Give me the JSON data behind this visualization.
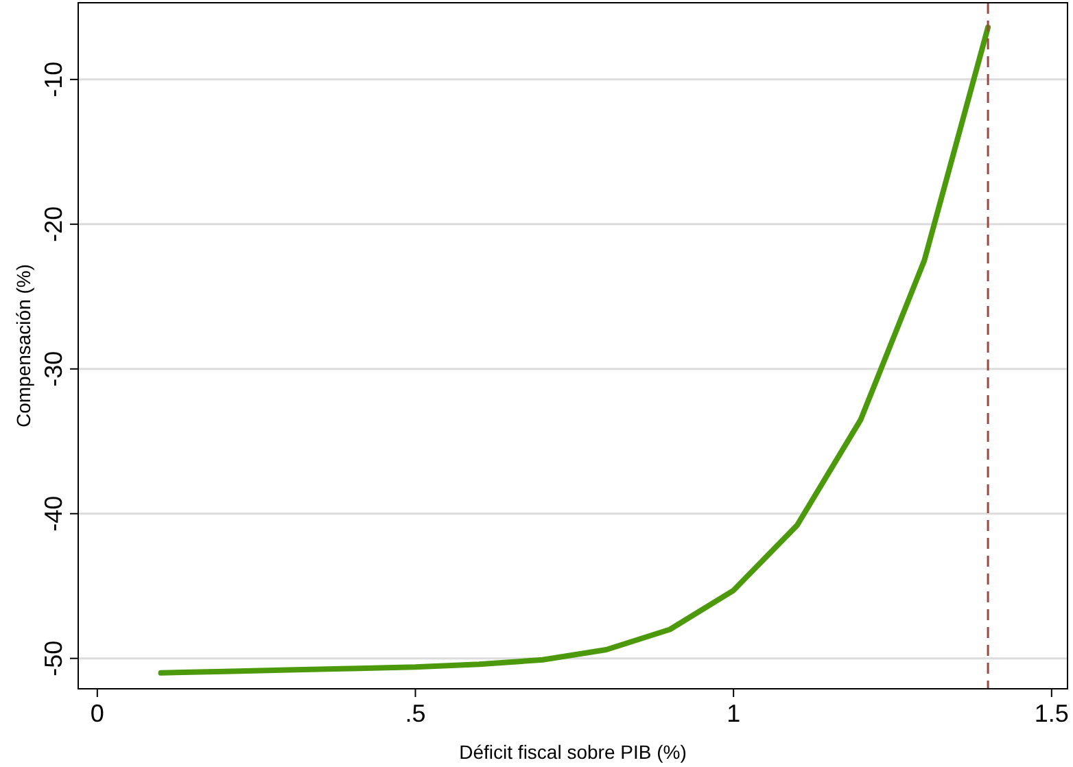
{
  "chart_data": {
    "type": "line",
    "xlabel": "Déficit fiscal sobre PIB (%)",
    "ylabel": "Compensación (%)",
    "x": [
      0.1,
      0.2,
      0.3,
      0.4,
      0.5,
      0.6,
      0.7,
      0.8,
      0.9,
      1.0,
      1.1,
      1.2,
      1.3,
      1.4
    ],
    "series": [
      {
        "color": "#4c9a0c",
        "values": [
          -51.0,
          -50.9,
          -50.8,
          -50.7,
          -50.6,
          -50.4,
          -50.1,
          -49.4,
          -48.0,
          -45.3,
          -40.8,
          -33.5,
          -22.5,
          -6.4
        ]
      }
    ],
    "xlim": [
      -0.03,
      1.525
    ],
    "ylim": [
      -52.1,
      -4.7
    ],
    "xticks": [
      0,
      {
        "value": 0.5,
        "label": ".5"
      },
      1,
      1.5
    ],
    "yticks": [
      -50,
      -40,
      -30,
      -20,
      -10
    ],
    "grid": "y",
    "marker": "none",
    "line_style": "solid",
    "ref_lines": [
      {
        "axis": "x",
        "value": 1.4,
        "color": "#a0453f",
        "line_style": "dashed"
      }
    ]
  }
}
